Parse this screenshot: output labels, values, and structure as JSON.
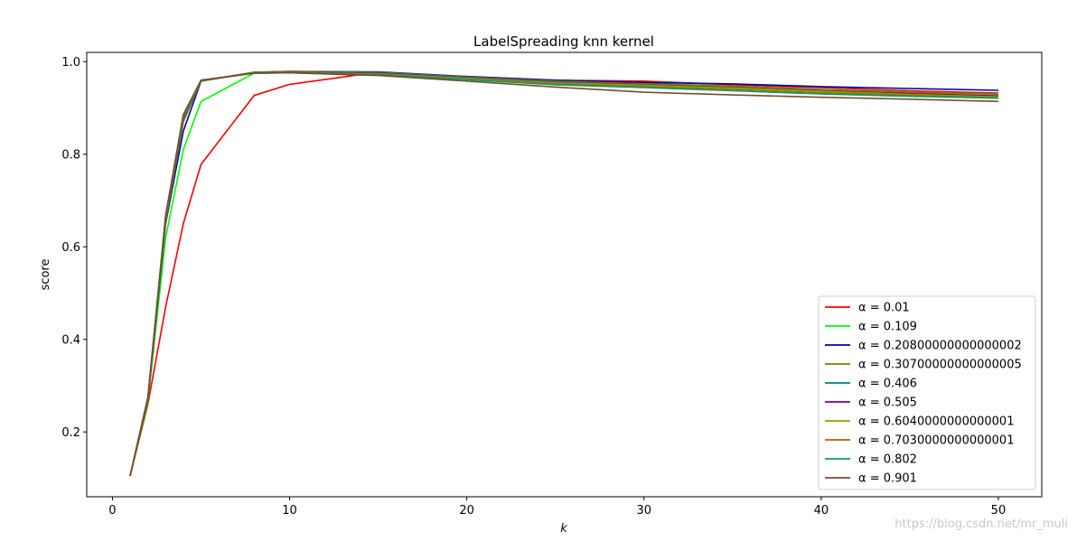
{
  "chart_data": {
    "type": "line",
    "title": "LabelSpreading knn kernel",
    "xlabel": "k",
    "ylabel": "score",
    "xlim": [
      -1.45,
      52.45
    ],
    "ylim": [
      0.06,
      1.02
    ],
    "xticks": [
      0,
      10,
      20,
      30,
      40,
      50
    ],
    "yticks": [
      0.2,
      0.4,
      0.6,
      0.8,
      1.0
    ],
    "ytick_labels": [
      "0.2",
      "0.4",
      "0.6",
      "0.8",
      "1.0"
    ],
    "xtick_labels": [
      "0",
      "10",
      "20",
      "30",
      "40",
      "50"
    ],
    "legend_position": "lower-right",
    "x": [
      1,
      2,
      3,
      4,
      5,
      8,
      10,
      14,
      15,
      20,
      25,
      30,
      35,
      40,
      45,
      50
    ],
    "series": [
      {
        "name": "α = 0.01",
        "color": "#ff0000",
        "values": [
          0.105,
          0.26,
          0.47,
          0.65,
          0.778,
          0.927,
          0.951,
          0.972,
          0.973,
          0.968,
          0.96,
          0.958,
          0.95,
          0.944,
          0.937,
          0.932
        ]
      },
      {
        "name": "α = 0.109",
        "color": "#00ff00",
        "values": [
          0.105,
          0.265,
          0.62,
          0.81,
          0.914,
          0.975,
          0.977,
          0.976,
          0.976,
          0.967,
          0.958,
          0.953,
          0.947,
          0.94,
          0.934,
          0.929
        ]
      },
      {
        "name": "α = 0.20800000000000002",
        "color": "#0000b0",
        "values": [
          0.105,
          0.27,
          0.65,
          0.85,
          0.958,
          0.977,
          0.979,
          0.978,
          0.978,
          0.968,
          0.96,
          0.955,
          0.952,
          0.946,
          0.942,
          0.938
        ]
      },
      {
        "name": "α = 0.30700000000000005",
        "color": "#808000",
        "values": [
          0.105,
          0.272,
          0.655,
          0.87,
          0.958,
          0.977,
          0.979,
          0.977,
          0.977,
          0.967,
          0.958,
          0.952,
          0.947,
          0.94,
          0.934,
          0.93
        ]
      },
      {
        "name": "α = 0.406",
        "color": "#008080",
        "values": [
          0.105,
          0.273,
          0.66,
          0.875,
          0.959,
          0.977,
          0.978,
          0.976,
          0.976,
          0.966,
          0.956,
          0.95,
          0.944,
          0.937,
          0.93,
          0.925
        ]
      },
      {
        "name": "α = 0.505",
        "color": "#800080",
        "values": [
          0.105,
          0.273,
          0.66,
          0.878,
          0.959,
          0.976,
          0.977,
          0.975,
          0.975,
          0.965,
          0.955,
          0.95,
          0.944,
          0.937,
          0.931,
          0.926
        ]
      },
      {
        "name": "α = 0.6040000000000001",
        "color": "#7faa00",
        "values": [
          0.105,
          0.274,
          0.662,
          0.88,
          0.959,
          0.976,
          0.977,
          0.974,
          0.974,
          0.964,
          0.954,
          0.949,
          0.943,
          0.936,
          0.929,
          0.924
        ]
      },
      {
        "name": "α = 0.7030000000000001",
        "color": "#b06000",
        "values": [
          0.105,
          0.274,
          0.664,
          0.882,
          0.96,
          0.976,
          0.977,
          0.973,
          0.973,
          0.962,
          0.952,
          0.946,
          0.94,
          0.933,
          0.927,
          0.922
        ]
      },
      {
        "name": "α = 0.802",
        "color": "#00a070",
        "values": [
          0.105,
          0.274,
          0.666,
          0.884,
          0.96,
          0.975,
          0.976,
          0.972,
          0.972,
          0.961,
          0.95,
          0.944,
          0.937,
          0.93,
          0.925,
          0.921
        ]
      },
      {
        "name": "α = 0.901",
        "color": "#7a4a30",
        "values": [
          0.105,
          0.275,
          0.668,
          0.886,
          0.96,
          0.975,
          0.976,
          0.971,
          0.97,
          0.958,
          0.945,
          0.934,
          0.928,
          0.923,
          0.919,
          0.914
        ]
      }
    ]
  },
  "watermark": "https://blog.csdn.net/mr_muli"
}
